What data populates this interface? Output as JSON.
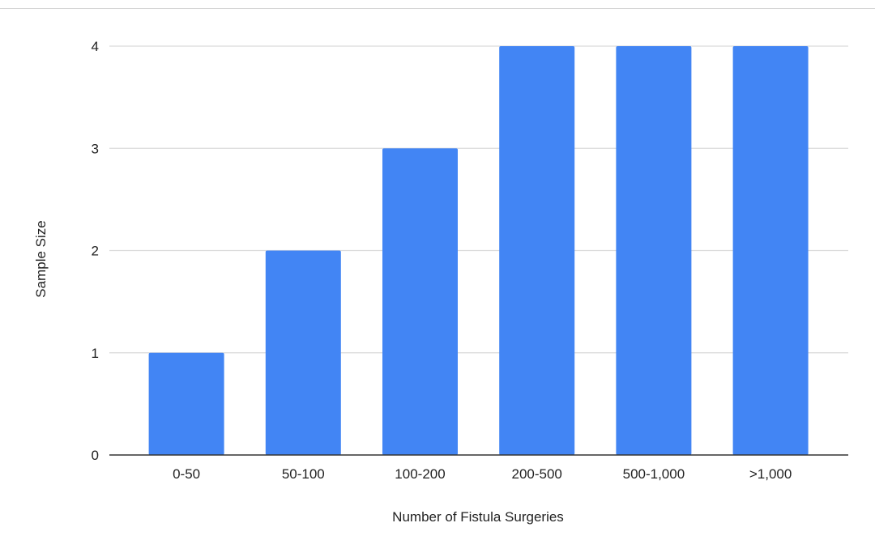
{
  "chart_data": {
    "type": "bar",
    "title": "",
    "xlabel": "Number of Fistula Surgeries",
    "ylabel": "Sample Size",
    "categories": [
      "0-50",
      "50-100",
      "100-200",
      "200-500",
      "500-1,000",
      ">1,000"
    ],
    "values": [
      1,
      2,
      3,
      4,
      4,
      4
    ],
    "ylim": [
      0,
      4
    ],
    "yticks": [
      "0",
      "1",
      "2",
      "3",
      "4"
    ],
    "grid": true,
    "legend": "none",
    "colors": {
      "bar": "#4285f4",
      "grid": "#d9d9d9",
      "axis": "#333333",
      "text": "#222222"
    }
  }
}
